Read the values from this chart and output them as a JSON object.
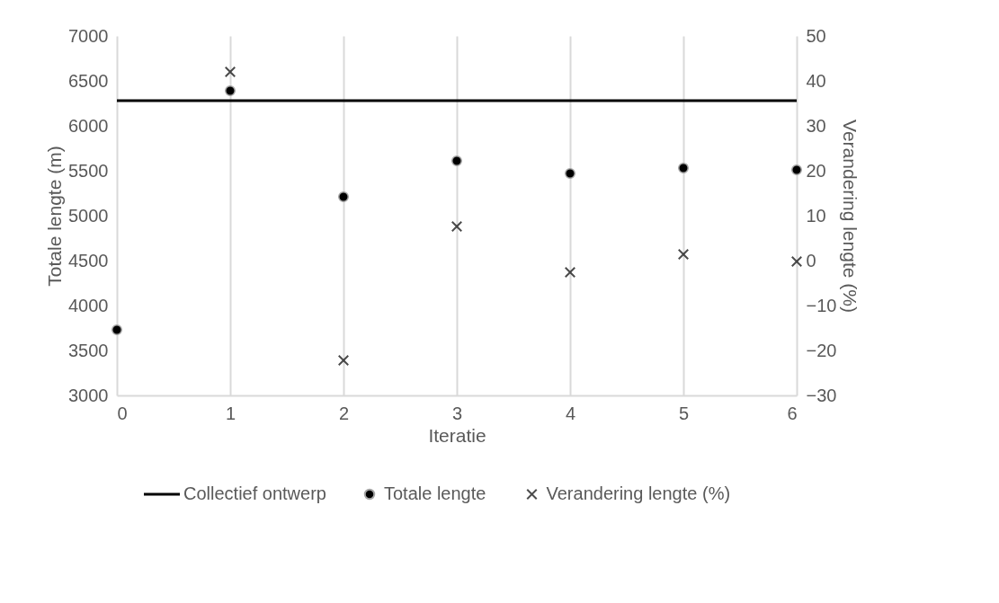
{
  "chart_data": {
    "type": "scatter",
    "xlabel": "Iteratie",
    "ylabel": "Totale lengte (m)",
    "y2label": "Verandering lengte (%)",
    "xlim": [
      0,
      6
    ],
    "xticks": [
      0,
      1,
      2,
      3,
      4,
      5,
      6
    ],
    "ylim": [
      3000,
      7000
    ],
    "yticks": [
      3000,
      3500,
      4000,
      4500,
      5000,
      5500,
      6000,
      6500,
      7000
    ],
    "y2lim": [
      -30,
      50
    ],
    "y2ticks": [
      -30,
      -20,
      -10,
      0,
      10,
      20,
      30,
      40,
      50
    ],
    "grid": "x",
    "legend": "bottom",
    "series": [
      {
        "name": "Collectief ontwerp",
        "type": "line",
        "color": "#000000",
        "x": [
          0,
          6
        ],
        "values": [
          6280,
          6280
        ]
      },
      {
        "name": "Totale lengte",
        "marker": "circle",
        "color": "#000000",
        "x": [
          0,
          1,
          2,
          3,
          4,
          5,
          6
        ],
        "values": [
          3730,
          6390,
          5210,
          5610,
          5470,
          5530,
          5510
        ]
      },
      {
        "name": "Verandering lengte (%)",
        "marker": "cross",
        "axis": "y2",
        "color": "#000000",
        "x": [
          1,
          2,
          3,
          4,
          5,
          6
        ],
        "values": [
          42,
          -22.2,
          7.6,
          -2.6,
          1.4,
          -0.2
        ]
      }
    ]
  }
}
